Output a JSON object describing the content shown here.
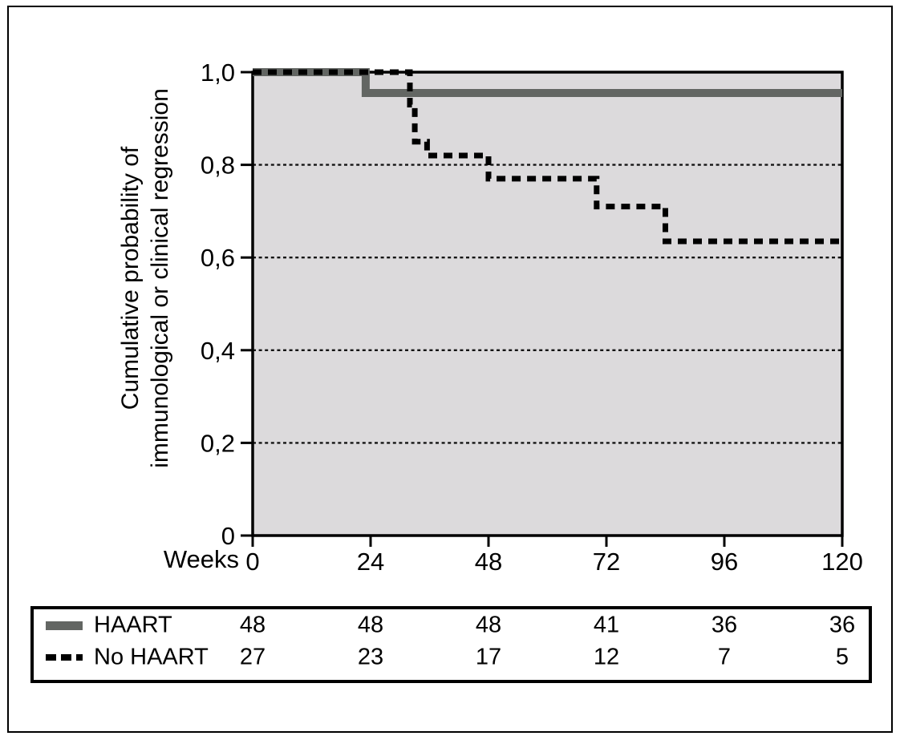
{
  "chart_data": {
    "type": "line",
    "chart_kind": "kaplan-meier-step",
    "title": "",
    "plot_background": "#dcdadc",
    "grid": true,
    "legend_position": "bottom-table",
    "x_axis": {
      "title": "Weeks",
      "range": [
        0,
        120
      ],
      "ticks": [
        {
          "value": 0,
          "label": "0"
        },
        {
          "value": 24,
          "label": "24"
        },
        {
          "value": 48,
          "label": "48"
        },
        {
          "value": 72,
          "label": "72"
        },
        {
          "value": 96,
          "label": "96"
        },
        {
          "value": 120,
          "label": "120"
        }
      ]
    },
    "y_axis": {
      "title_line1": "Cumulative probability of",
      "title_line2": "immunological or clinical regression",
      "range": [
        0,
        1
      ],
      "ticks": [
        {
          "value": 0,
          "label": "0"
        },
        {
          "value": 0.2,
          "label": "0,2"
        },
        {
          "value": 0.4,
          "label": "0,4"
        },
        {
          "value": 0.6,
          "label": "0,6"
        },
        {
          "value": 0.8,
          "label": "0,8"
        },
        {
          "value": 1,
          "label": "1,0"
        }
      ],
      "gridlines": [
        0.2,
        0.4,
        0.6,
        0.8
      ]
    },
    "series": [
      {
        "name": "HAART",
        "line_style": "solid",
        "color": "#636663",
        "stroke_width": 10,
        "points": [
          [
            0,
            1.0
          ],
          [
            23,
            1.0
          ],
          [
            23,
            0.955
          ],
          [
            120,
            0.955
          ]
        ]
      },
      {
        "name": "No HAART",
        "line_style": "dashed",
        "color": "#000000",
        "stroke_width": 7,
        "points": [
          [
            0,
            1.0
          ],
          [
            32,
            1.0
          ],
          [
            32,
            0.93
          ],
          [
            33,
            0.93
          ],
          [
            33,
            0.85
          ],
          [
            35.5,
            0.85
          ],
          [
            35.5,
            0.82
          ],
          [
            48,
            0.82
          ],
          [
            48,
            0.77
          ],
          [
            70,
            0.77
          ],
          [
            70,
            0.71
          ],
          [
            84,
            0.71
          ],
          [
            84,
            0.635
          ],
          [
            120,
            0.635
          ]
        ]
      }
    ],
    "at_risk_table": {
      "weeks": [
        0,
        24,
        48,
        72,
        96,
        120
      ],
      "rows": [
        {
          "label": "HAART",
          "swatch": "solid",
          "counts": [
            "48",
            "48",
            "48",
            "41",
            "36",
            "36"
          ]
        },
        {
          "label": "No HAART",
          "swatch": "dashed",
          "counts": [
            "27",
            "23",
            "17",
            "12",
            "7",
            "5"
          ]
        }
      ]
    }
  }
}
